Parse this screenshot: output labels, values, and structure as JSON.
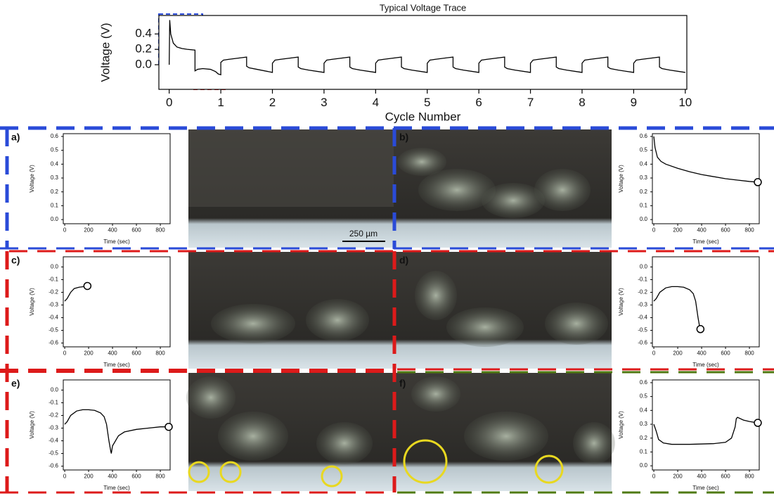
{
  "chart_data": [
    {
      "type": "line",
      "title": "Typical Voltage Trace",
      "xlabel": "Cycle Number",
      "ylabel": "Voltage (V)",
      "color": "#000000",
      "x": [
        0,
        0.01,
        0.03,
        0.08,
        0.15,
        0.25,
        0.35,
        0.5,
        0.5,
        0.55,
        0.65,
        0.8,
        0.9,
        0.95,
        1.0,
        1.0,
        1.05,
        1.15,
        1.5,
        1.5,
        1.55,
        1.7,
        2.0,
        2,
        2.05,
        2.15,
        2.5,
        2.5,
        2.55,
        2.7,
        3,
        3,
        3.05,
        3.15,
        3.5,
        3.5,
        3.55,
        3.7,
        4,
        4,
        4.05,
        4.15,
        4.5,
        4.5,
        4.55,
        4.7,
        5,
        5,
        5.05,
        5.15,
        5.5,
        5.5,
        5.55,
        5.7,
        6,
        6,
        6.05,
        6.15,
        6.5,
        6.5,
        6.55,
        6.7,
        7,
        7,
        7.05,
        7.15,
        7.5,
        7.5,
        7.55,
        7.7,
        8,
        8,
        8.05,
        8.15,
        8.5,
        8.5,
        8.55,
        8.7,
        9,
        9,
        9.05,
        9.15,
        9.5,
        9.5,
        9.55,
        9.7,
        10
      ],
      "values": [
        0,
        0.58,
        0.4,
        0.28,
        0.23,
        0.21,
        0.2,
        0.19,
        -0.08,
        -0.06,
        -0.05,
        -0.06,
        -0.09,
        -0.12,
        -0.13,
        0.03,
        0.06,
        0.07,
        0.1,
        -0.02,
        -0.04,
        -0.06,
        -0.1,
        0.02,
        0.06,
        0.07,
        0.1,
        -0.03,
        -0.05,
        -0.07,
        -0.1,
        0.02,
        0.06,
        0.07,
        0.1,
        -0.03,
        -0.05,
        -0.07,
        -0.1,
        0.02,
        0.06,
        0.07,
        0.1,
        -0.03,
        -0.05,
        -0.07,
        -0.1,
        0.02,
        0.06,
        0.07,
        0.1,
        -0.03,
        -0.05,
        -0.07,
        -0.1,
        0.02,
        0.06,
        0.07,
        0.1,
        -0.03,
        -0.05,
        -0.07,
        -0.1,
        0.02,
        0.06,
        0.07,
        0.1,
        -0.03,
        -0.05,
        -0.07,
        -0.1,
        0.02,
        0.06,
        0.07,
        0.1,
        -0.03,
        -0.05,
        -0.07,
        -0.1,
        0.02,
        0.06,
        0.07,
        0.1,
        -0.03,
        -0.05,
        -0.07,
        -0.1
      ],
      "xlim": [
        -0.2,
        10.03
      ],
      "ylim": [
        -0.32,
        0.64
      ],
      "xticks": [
        0,
        1,
        2,
        3,
        4,
        5,
        6,
        7,
        8,
        9,
        10
      ],
      "yticks": [
        {
          "value": 0,
          "label": "0.0"
        },
        0.2,
        0.4
      ]
    },
    {
      "type": "line",
      "panel": "a)",
      "xlabel": "Time (sec)",
      "ylabel": "Voltage (V)",
      "color": "#000000",
      "xlim": [
        -12,
        882
      ],
      "ylim": [
        -0.03,
        0.62
      ],
      "xticks": [
        0,
        200,
        400,
        600,
        800
      ],
      "yticks": [
        {
          "value": 0,
          "label": "0.0"
        },
        0.1,
        0.2,
        0.3,
        0.4,
        0.5,
        0.6
      ]
    },
    {
      "type": "line",
      "panel": "b)",
      "xlabel": "Time (sec)",
      "ylabel": "Voltage (V)",
      "color": "#000000",
      "end_marker": true,
      "x": [
        0,
        10,
        30,
        60,
        100,
        200,
        300,
        400,
        500,
        600,
        700,
        800,
        870
      ],
      "values": [
        0.6,
        0.52,
        0.45,
        0.42,
        0.4,
        0.37,
        0.345,
        0.325,
        0.31,
        0.295,
        0.285,
        0.275,
        0.27
      ],
      "xlim": [
        -12,
        882
      ],
      "ylim": [
        -0.03,
        0.62
      ],
      "xticks": [
        0,
        200,
        400,
        600,
        800
      ],
      "yticks": [
        {
          "value": 0,
          "label": "0.0"
        },
        0.1,
        0.2,
        0.3,
        0.4,
        0.5,
        0.6
      ]
    },
    {
      "type": "line",
      "panel": "c)",
      "xlabel": "Time (sec)",
      "ylabel": "Voltage (V)",
      "color": "#000000",
      "end_marker": true,
      "x": [
        0,
        20,
        50,
        80,
        120,
        160,
        190
      ],
      "values": [
        -0.27,
        -0.25,
        -0.2,
        -0.17,
        -0.16,
        -0.155,
        -0.15
      ],
      "xlim": [
        -12,
        882
      ],
      "ylim": [
        -0.63,
        0.08
      ],
      "xticks": [
        0,
        200,
        400,
        600,
        800
      ],
      "yticks": [
        {
          "value": 0,
          "label": "0.0"
        },
        -0.1,
        -0.2,
        -0.3,
        -0.4,
        -0.5,
        -0.6
      ]
    },
    {
      "type": "line",
      "panel": "d)",
      "xlabel": "Time (sec)",
      "ylabel": "Voltage (V)",
      "color": "#000000",
      "end_marker": true,
      "x": [
        0,
        20,
        50,
        100,
        150,
        200,
        250,
        300,
        330,
        350,
        370,
        385,
        390
      ],
      "values": [
        -0.27,
        -0.25,
        -0.2,
        -0.165,
        -0.155,
        -0.155,
        -0.16,
        -0.18,
        -0.21,
        -0.27,
        -0.4,
        -0.48,
        -0.49
      ],
      "xlim": [
        -12,
        882
      ],
      "ylim": [
        -0.63,
        0.08
      ],
      "xticks": [
        0,
        200,
        400,
        600,
        800
      ],
      "yticks": [
        {
          "value": 0,
          "label": "0.0"
        },
        -0.1,
        -0.2,
        -0.3,
        -0.4,
        -0.5,
        -0.6
      ]
    },
    {
      "type": "line",
      "panel": "e)",
      "xlabel": "Time (sec)",
      "ylabel": "Voltage (V)",
      "color": "#000000",
      "end_marker": true,
      "x": [
        0,
        20,
        50,
        100,
        150,
        200,
        250,
        300,
        330,
        350,
        370,
        385,
        390,
        400,
        450,
        500,
        600,
        700,
        800,
        870
      ],
      "values": [
        -0.27,
        -0.25,
        -0.2,
        -0.165,
        -0.155,
        -0.155,
        -0.16,
        -0.18,
        -0.21,
        -0.27,
        -0.4,
        -0.48,
        -0.5,
        -0.44,
        -0.36,
        -0.33,
        -0.31,
        -0.3,
        -0.29,
        -0.29
      ],
      "xlim": [
        -12,
        882
      ],
      "ylim": [
        -0.63,
        0.08
      ],
      "xticks": [
        0,
        200,
        400,
        600,
        800
      ],
      "yticks": [
        {
          "value": 0,
          "label": "0.0"
        },
        -0.1,
        -0.2,
        -0.3,
        -0.4,
        -0.5,
        -0.6
      ]
    },
    {
      "type": "line",
      "panel": "f)",
      "xlabel": "Time (sec)",
      "ylabel": "Voltage (V)",
      "color": "#000000",
      "end_marker": true,
      "x": [
        0,
        20,
        40,
        80,
        150,
        300,
        500,
        600,
        650,
        680,
        690,
        700,
        750,
        800,
        870
      ],
      "values": [
        0.3,
        0.25,
        0.19,
        0.165,
        0.155,
        0.155,
        0.16,
        0.17,
        0.2,
        0.28,
        0.34,
        0.35,
        0.33,
        0.32,
        0.31
      ],
      "xlim": [
        -12,
        882
      ],
      "ylim": [
        -0.03,
        0.62
      ],
      "xticks": [
        0,
        200,
        400,
        600,
        800
      ],
      "yticks": [
        {
          "value": 0,
          "label": "0.0"
        },
        0.1,
        0.2,
        0.3,
        0.4,
        0.5,
        0.6
      ]
    }
  ],
  "scale_bar": "250 µm"
}
